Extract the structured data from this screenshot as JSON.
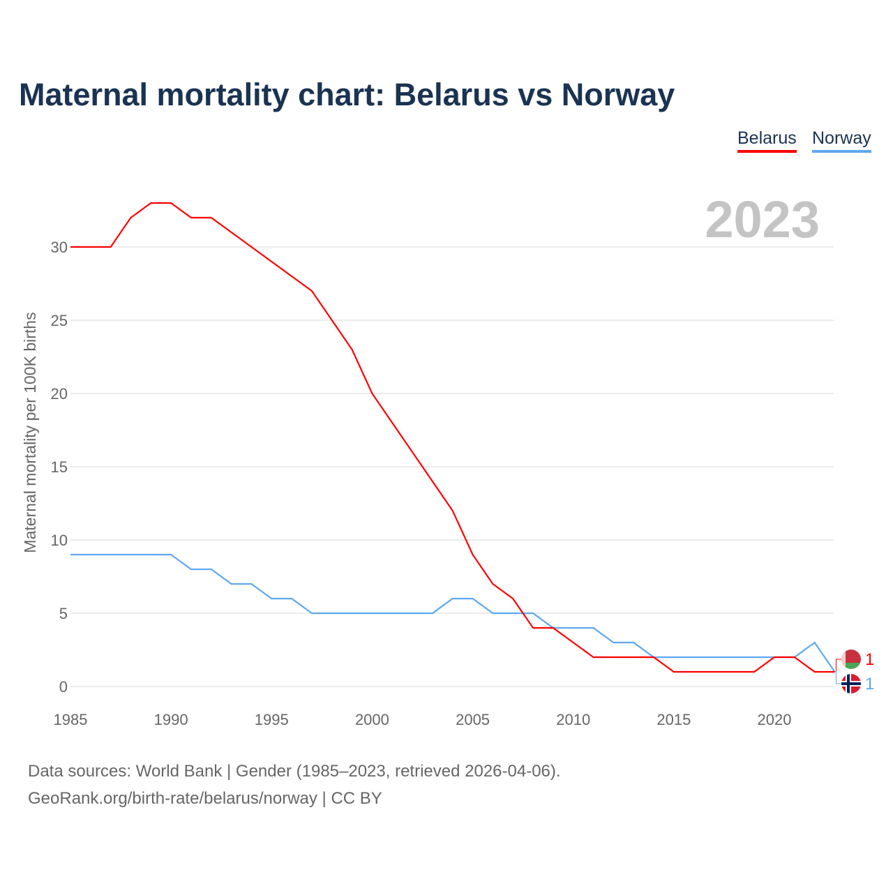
{
  "chart_data": {
    "type": "line",
    "title": "Maternal mortality chart: Belarus vs Norway",
    "ylabel": "Maternal mortality per 100K births",
    "xlabel": "",
    "year_watermark": "2023",
    "xlim": [
      1985,
      2023
    ],
    "ylim": [
      0,
      33
    ],
    "x_ticks": [
      "1985",
      "1990",
      "1995",
      "2000",
      "2005",
      "2010",
      "2015",
      "2020"
    ],
    "y_ticks": [
      "0",
      "5",
      "10",
      "15",
      "20",
      "25",
      "30"
    ],
    "grid": true,
    "legend_placement": "top-right",
    "x": [
      1985,
      1986,
      1987,
      1988,
      1989,
      1990,
      1991,
      1992,
      1993,
      1994,
      1995,
      1996,
      1997,
      1998,
      1999,
      2000,
      2001,
      2002,
      2003,
      2004,
      2005,
      2006,
      2007,
      2008,
      2009,
      2010,
      2011,
      2012,
      2013,
      2014,
      2015,
      2016,
      2017,
      2018,
      2019,
      2020,
      2021,
      2022,
      2023
    ],
    "series": [
      {
        "name": "Belarus",
        "color": "#ff0000",
        "end_label": "1",
        "values": [
          30,
          30,
          30,
          32,
          33,
          33,
          32,
          32,
          31,
          30,
          29,
          28,
          27,
          25,
          23,
          20,
          18,
          16,
          14,
          12,
          9,
          7,
          6,
          4,
          4,
          3,
          2,
          2,
          2,
          2,
          1,
          1,
          1,
          1,
          1,
          2,
          2,
          1,
          1
        ]
      },
      {
        "name": "Norway",
        "color": "#5ea8ef",
        "end_label": "1",
        "values": [
          9,
          9,
          9,
          9,
          9,
          9,
          8,
          8,
          7,
          7,
          6,
          6,
          5,
          5,
          5,
          5,
          5,
          5,
          5,
          6,
          6,
          5,
          5,
          5,
          4,
          4,
          4,
          3,
          3,
          2,
          2,
          2,
          2,
          2,
          2,
          2,
          2,
          3,
          1
        ]
      }
    ]
  },
  "footer": {
    "line1": "Data sources: World Bank | Gender (1985–2023, retrieved 2026-04-06).",
    "line2": "GeoRank.org/birth-rate/belarus/norway | CC BY"
  }
}
